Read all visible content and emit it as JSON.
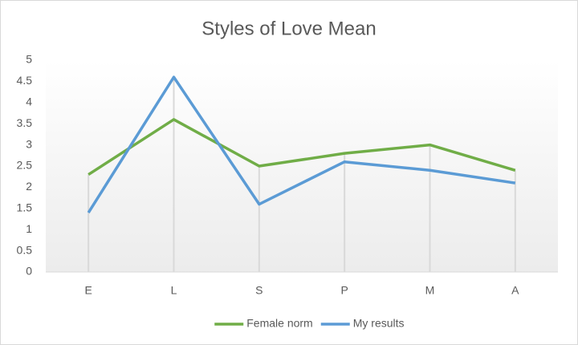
{
  "chart_data": {
    "type": "line",
    "title": "Styles of Love Mean",
    "categories": [
      "E",
      "L",
      "S",
      "P",
      "M",
      "A"
    ],
    "series": [
      {
        "name": "Female norm",
        "color": "#70ad47",
        "values": [
          2.3,
          3.6,
          2.5,
          2.8,
          3.0,
          2.4
        ]
      },
      {
        "name": "My results",
        "color": "#5b9bd5",
        "values": [
          1.4,
          4.6,
          1.6,
          2.6,
          2.4,
          2.1
        ]
      }
    ],
    "ylim": [
      0,
      5
    ],
    "yticks": [
      0,
      0.5,
      1,
      1.5,
      2,
      2.5,
      3,
      3.5,
      4,
      4.5,
      5
    ],
    "drop_lines": true,
    "legend": "bottom"
  }
}
